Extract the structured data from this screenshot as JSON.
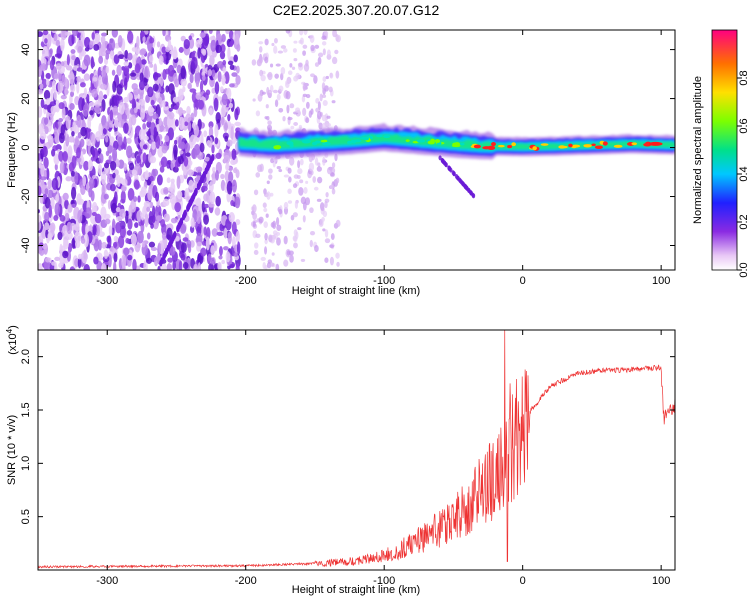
{
  "chart_data": [
    {
      "type": "heatmap",
      "title": "C2E2.2025.307.20.07.G12",
      "xlabel": "Height of straight line (km)",
      "ylabel": "Frequency (Hz)",
      "xlim": [
        -350,
        110
      ],
      "ylim": [
        -50,
        48
      ],
      "xticks": [
        -300,
        -200,
        -100,
        0,
        100
      ],
      "yticks": [
        -40,
        -20,
        0,
        20,
        40
      ],
      "colorbar": {
        "label": "Normalized spectral amplitude",
        "range": [
          0,
          1
        ],
        "ticks": [
          0.0,
          0.2,
          0.4,
          0.6,
          0.8
        ]
      },
      "ridge": [
        {
          "x": -205,
          "y": 2
        },
        {
          "x": -180,
          "y": 1
        },
        {
          "x": -150,
          "y": 2
        },
        {
          "x": -120,
          "y": 3
        },
        {
          "x": -100,
          "y": 4
        },
        {
          "x": -80,
          "y": 3
        },
        {
          "x": -60,
          "y": 2
        },
        {
          "x": -40,
          "y": 1
        },
        {
          "x": -20,
          "y": 0.5
        },
        {
          "x": 0,
          "y": 0.3
        },
        {
          "x": 20,
          "y": 0.5
        },
        {
          "x": 50,
          "y": 1
        },
        {
          "x": 80,
          "y": 1.5
        },
        {
          "x": 110,
          "y": 1
        }
      ]
    },
    {
      "type": "line",
      "xlabel": "Height of straight line (km)",
      "ylabel": "SNR (10 * v/v)",
      "y_multiplier": "(x10",
      "y_multiplier_exp": "4",
      "y_multiplier_close": ")",
      "xlim": [
        -350,
        110
      ],
      "ylim": [
        0,
        2.25
      ],
      "xticks": [
        -300,
        -200,
        -100,
        0,
        100
      ],
      "yticks": [
        0.5,
        1.0,
        1.5,
        2.0
      ],
      "ytick_labels": [
        "0.5",
        "1.0",
        "1.5",
        "2.0"
      ],
      "color": "#ee3333",
      "envelope_x": [
        -350,
        -200,
        -150,
        -120,
        -100,
        -80,
        -60,
        -40,
        -25,
        -15,
        -10,
        0,
        20,
        40,
        60,
        80,
        100,
        102,
        110
      ],
      "envelope_y": [
        0.03,
        0.04,
        0.06,
        0.09,
        0.14,
        0.25,
        0.4,
        0.6,
        0.85,
        1.0,
        1.15,
        1.4,
        1.72,
        1.85,
        1.87,
        1.88,
        1.9,
        1.42,
        1.55
      ],
      "spikes": [
        {
          "x": -13,
          "y": 2.25
        },
        {
          "x": -11,
          "y": 0.08
        },
        {
          "x": -9,
          "y": 1.75
        }
      ]
    }
  ]
}
